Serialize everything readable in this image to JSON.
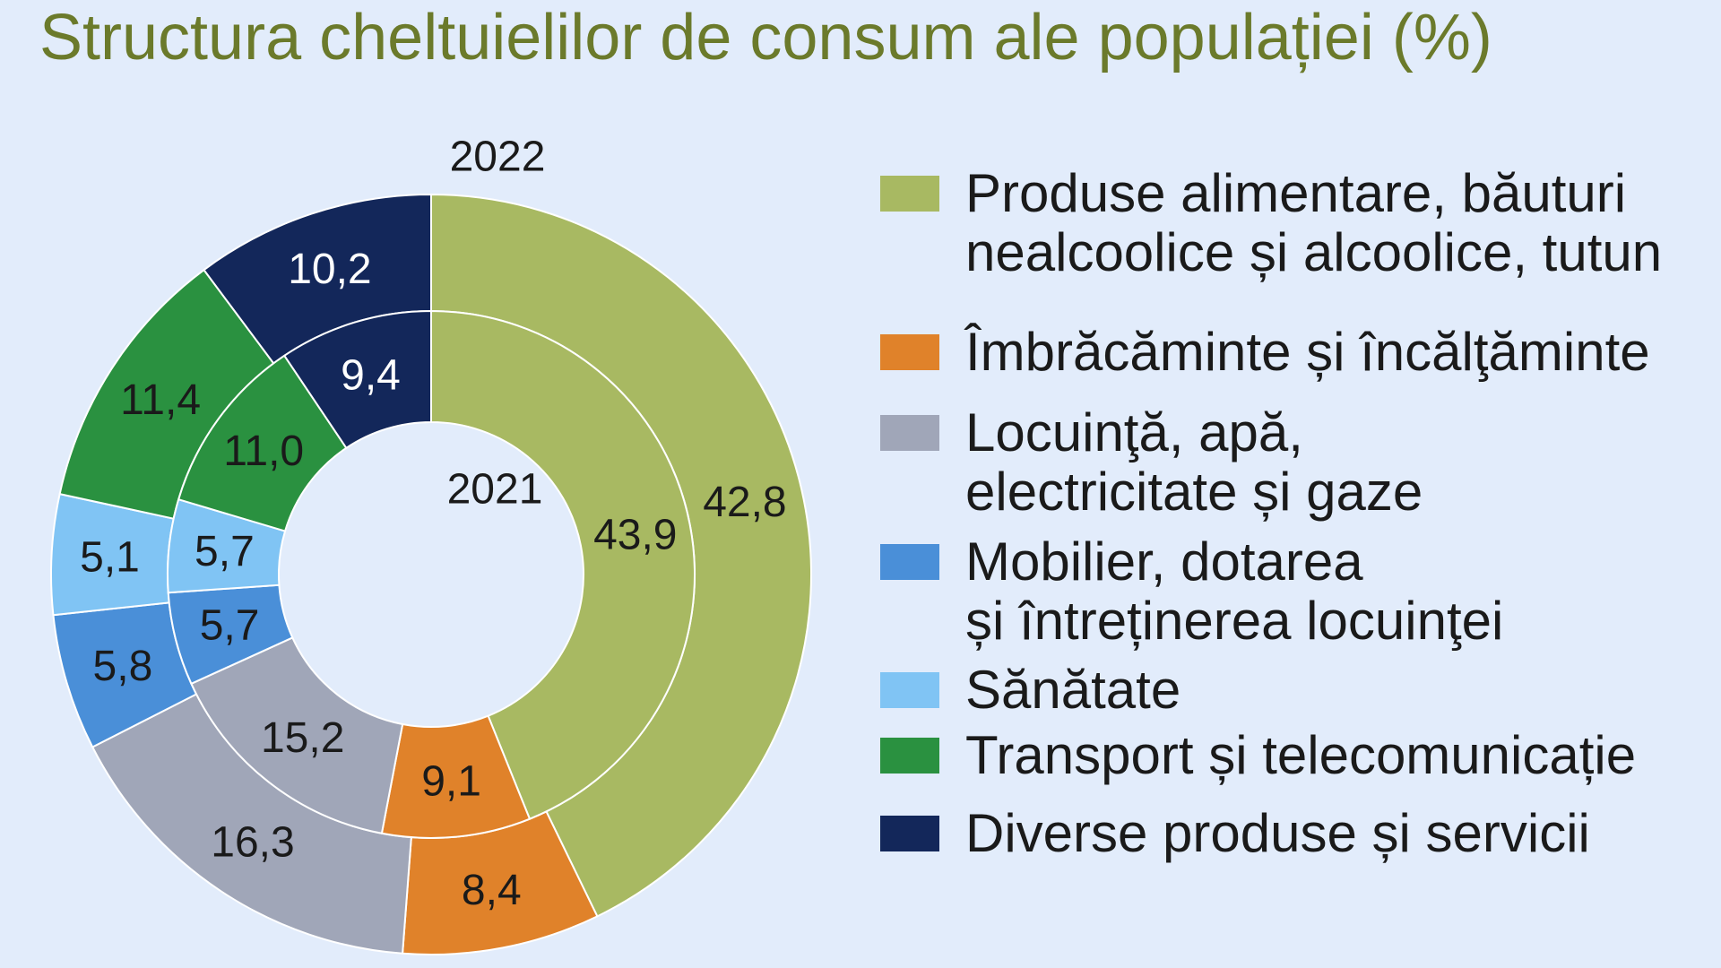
{
  "chart_data": {
    "type": "pie",
    "subtype": "nested-donut",
    "title": "Structura cheltuielilor de consum ale populației (%)",
    "unit": "%",
    "series": [
      {
        "name": "2022",
        "values": [
          42.8,
          8.4,
          16.3,
          5.8,
          5.1,
          11.4,
          10.2
        ],
        "labels": [
          "42,8",
          "8,4",
          "16,3",
          "5,8",
          "5,1",
          "11,4",
          "10,2"
        ]
      },
      {
        "name": "2021",
        "values": [
          43.9,
          9.1,
          15.2,
          5.7,
          5.7,
          11.0,
          9.4
        ],
        "labels": [
          "43,9",
          "9,1",
          "15,2",
          "5,7",
          "5,7",
          "11,0",
          "9,4"
        ]
      }
    ],
    "legend": [
      {
        "lines": [
          "Produse alimentare, băuturi",
          "nealcoolice și alcoolice, tutun"
        ]
      },
      {
        "lines": [
          "Îmbrăcăminte și încălţăminte"
        ]
      },
      {
        "lines": [
          "Locuinţă, apă,",
          "electricitate și gaze"
        ]
      },
      {
        "lines": [
          "Mobilier, dotarea",
          "și întreținerea locuinţei"
        ]
      },
      {
        "lines": [
          "Sănătate"
        ]
      },
      {
        "lines": [
          "Transport și telecomunicație"
        ]
      },
      {
        "lines": [
          "Diverse produse și servicii"
        ]
      }
    ],
    "legend_position": "right",
    "colors": [
      "#a8b962",
      "#e0822a",
      "#a0a6b8",
      "#4a8fd8",
      "#80c4f4",
      "#2a9140",
      "#13275a"
    ],
    "label_colors": [
      "#1a1a1a",
      "#1a1a1a",
      "#1a1a1a",
      "#1a1a1a",
      "#1a1a1a",
      "#1a1a1a",
      "#ffffff"
    ]
  }
}
